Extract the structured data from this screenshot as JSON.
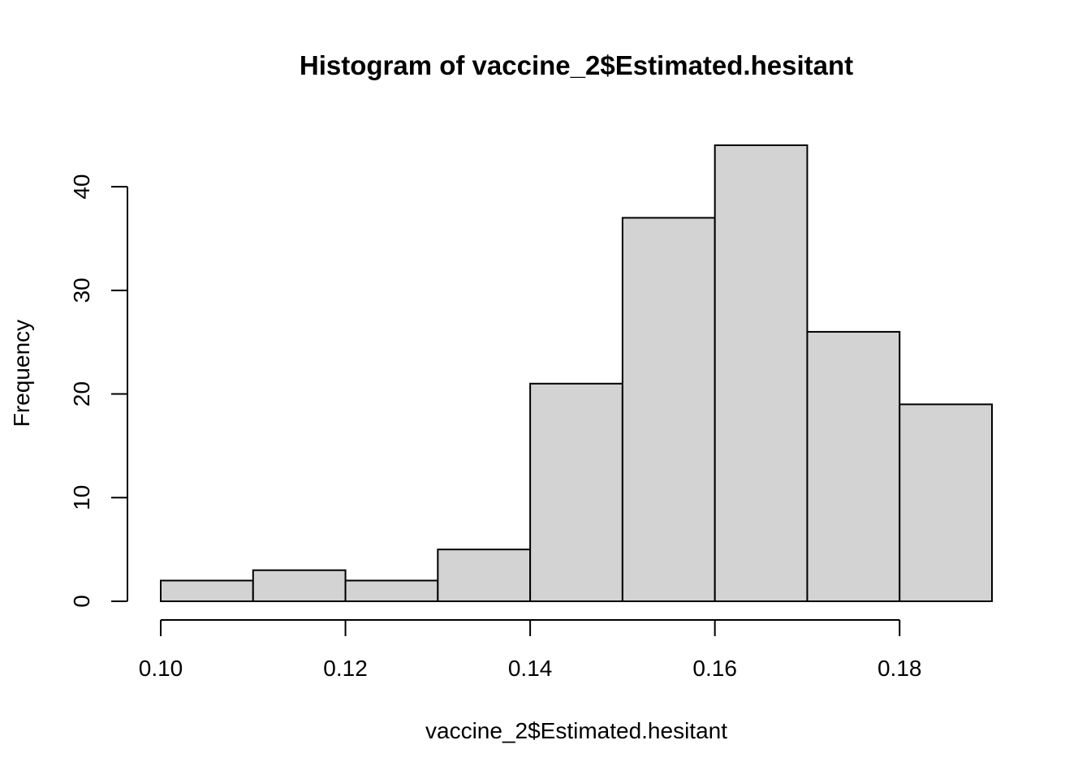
{
  "chart_data": {
    "type": "bar",
    "title": "Histogram of vaccine_2$Estimated.hesitant",
    "xlabel": "vaccine_2$Estimated.hesitant",
    "ylabel": "Frequency",
    "bins": [
      {
        "start": 0.1,
        "end": 0.11,
        "count": 2
      },
      {
        "start": 0.11,
        "end": 0.12,
        "count": 3
      },
      {
        "start": 0.12,
        "end": 0.13,
        "count": 2
      },
      {
        "start": 0.13,
        "end": 0.14,
        "count": 5
      },
      {
        "start": 0.14,
        "end": 0.15,
        "count": 21
      },
      {
        "start": 0.15,
        "end": 0.16,
        "count": 37
      },
      {
        "start": 0.16,
        "end": 0.17,
        "count": 44
      },
      {
        "start": 0.17,
        "end": 0.18,
        "count": 26
      },
      {
        "start": 0.18,
        "end": 0.19,
        "count": 19
      }
    ],
    "xlim": [
      0.1,
      0.19
    ],
    "ylim": [
      0,
      44
    ],
    "x_ticks": [
      0.1,
      0.12,
      0.14,
      0.16,
      0.18
    ],
    "x_tick_labels": [
      "0.10",
      "0.12",
      "0.14",
      "0.16",
      "0.18"
    ],
    "y_ticks": [
      0,
      10,
      20,
      30,
      40
    ],
    "y_tick_labels": [
      "0",
      "10",
      "20",
      "30",
      "40"
    ],
    "bar_fill": "#d3d3d3",
    "bar_stroke": "#000000",
    "grid": false
  }
}
